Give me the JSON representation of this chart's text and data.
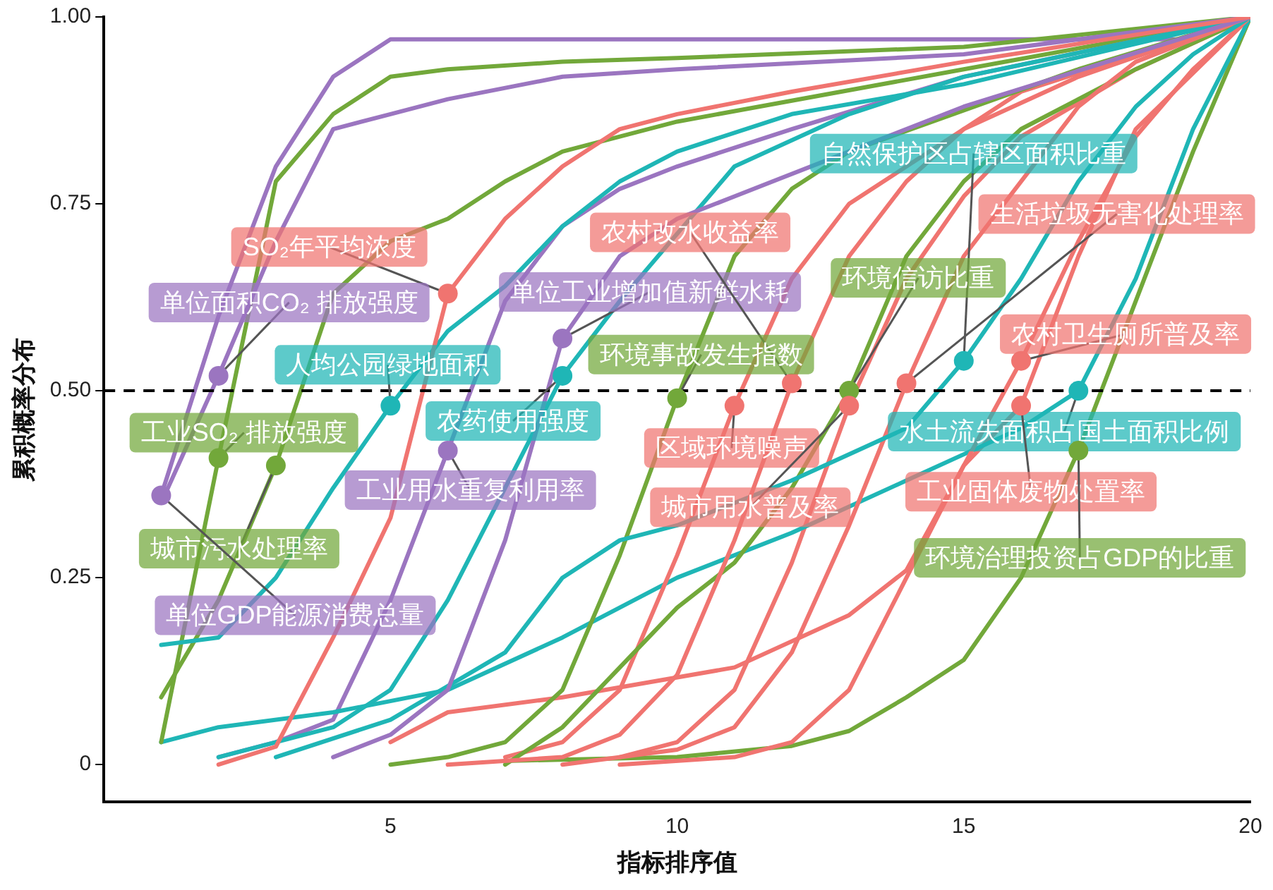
{
  "chart_data": {
    "type": "line",
    "xlabel": "指标排序值",
    "ylabel": "累积概率分布",
    "xlim": [
      0,
      20
    ],
    "xticks": [
      5,
      10,
      15,
      20
    ],
    "ylim": [
      -0.05,
      1.0
    ],
    "yticks": [
      0,
      0.25,
      {
        "value": 0.5,
        "label": "0.50"
      },
      0.75,
      {
        "value": 1,
        "label": "1.00"
      }
    ],
    "grid": false,
    "legend": false,
    "marker": "none",
    "line_style": "solid",
    "ref_lines": [
      {
        "axis": "y",
        "value": 0.5,
        "color": "#000000",
        "line_style": "dashed"
      }
    ],
    "series": [
      {
        "color": "#f07470",
        "x": [
          2,
          3,
          4,
          5,
          6,
          7,
          8,
          9,
          10,
          12,
          15,
          20
        ],
        "values": [
          0.0,
          0.024,
          0.17,
          0.33,
          0.63,
          0.73,
          0.8,
          0.85,
          0.87,
          0.9,
          0.94,
          1
        ]
      },
      {
        "color": "#9b75c0",
        "x": [
          1,
          2,
          3,
          4,
          5,
          6,
          8,
          10,
          15,
          20
        ],
        "values": [
          0.35,
          0.52,
          0.7,
          0.85,
          0.87,
          0.89,
          0.92,
          0.93,
          0.95,
          1
        ]
      },
      {
        "color": "#9b75c0",
        "x": [
          4,
          5,
          6,
          7,
          8,
          9,
          10,
          11,
          13,
          15,
          20
        ],
        "values": [
          0.01,
          0.04,
          0.1,
          0.3,
          0.57,
          0.68,
          0.73,
          0.76,
          0.82,
          0.88,
          1
        ]
      },
      {
        "color": "#f07470",
        "x": [
          6,
          8,
          9,
          10,
          11,
          12,
          13,
          14,
          15,
          17,
          20
        ],
        "values": [
          0.0,
          0.01,
          0.04,
          0.12,
          0.3,
          0.51,
          0.68,
          0.78,
          0.85,
          0.92,
          1
        ]
      },
      {
        "color": "#1fb6b6",
        "x": [
          3,
          5,
          7,
          8,
          9,
          10,
          12,
          14,
          15,
          16,
          17,
          18,
          19,
          20
        ],
        "values": [
          0.01,
          0.06,
          0.15,
          0.25,
          0.3,
          0.32,
          0.38,
          0.45,
          0.54,
          0.65,
          0.78,
          0.88,
          0.95,
          1
        ]
      },
      {
        "color": "#f07470",
        "x": [
          8,
          10,
          11,
          12,
          13,
          14,
          15,
          17,
          18,
          20
        ],
        "values": [
          0.0,
          0.02,
          0.05,
          0.15,
          0.32,
          0.51,
          0.68,
          0.88,
          0.94,
          1
        ]
      },
      {
        "color": "#72a83a",
        "x": [
          7,
          8,
          9,
          10,
          11,
          12,
          13,
          14,
          15,
          16,
          18,
          20
        ],
        "values": [
          0.0,
          0.05,
          0.13,
          0.21,
          0.27,
          0.37,
          0.5,
          0.68,
          0.78,
          0.85,
          0.93,
          1
        ]
      },
      {
        "color": "#1fb6b6",
        "x": [
          1,
          2,
          3,
          4,
          5,
          6,
          7,
          8,
          9,
          10,
          12,
          15,
          20
        ],
        "values": [
          0.16,
          0.17,
          0.25,
          0.37,
          0.48,
          0.58,
          0.64,
          0.72,
          0.78,
          0.82,
          0.87,
          0.91,
          1
        ]
      },
      {
        "color": "#72a83a",
        "x": [
          5,
          6,
          7,
          8,
          9,
          10,
          11,
          12,
          13,
          17,
          20
        ],
        "values": [
          0.0,
          0.01,
          0.03,
          0.1,
          0.28,
          0.49,
          0.68,
          0.77,
          0.82,
          0.93,
          1
        ]
      },
      {
        "color": "#f07470",
        "x": [
          9,
          11,
          12,
          13,
          14,
          15,
          16,
          17,
          18,
          19,
          20
        ],
        "values": [
          0.0,
          0.01,
          0.03,
          0.1,
          0.25,
          0.4,
          0.54,
          0.7,
          0.84,
          0.93,
          1
        ]
      },
      {
        "color": "#72a83a",
        "x": [
          1,
          2,
          3,
          4,
          5,
          6,
          8,
          10,
          15,
          20
        ],
        "values": [
          0.03,
          0.41,
          0.78,
          0.87,
          0.92,
          0.93,
          0.94,
          0.945,
          0.96,
          1
        ]
      },
      {
        "color": "#1fb6b6",
        "x": [
          2,
          3,
          4,
          5,
          6,
          7,
          8,
          9,
          11,
          13,
          15,
          20
        ],
        "values": [
          0.01,
          0.03,
          0.05,
          0.1,
          0.22,
          0.37,
          0.52,
          0.62,
          0.8,
          0.87,
          0.92,
          1
        ]
      },
      {
        "color": "#f07470",
        "x": [
          7,
          8,
          9,
          10,
          11,
          12,
          13,
          16,
          18,
          20
        ],
        "values": [
          0.01,
          0.03,
          0.1,
          0.28,
          0.48,
          0.65,
          0.75,
          0.9,
          0.95,
          1
        ]
      },
      {
        "color": "#1fb6b6",
        "x": [
          1,
          2,
          4,
          6,
          8,
          10,
          12,
          14,
          16,
          17,
          18,
          19,
          20
        ],
        "values": [
          0.03,
          0.05,
          0.07,
          0.1,
          0.17,
          0.25,
          0.31,
          0.38,
          0.45,
          0.5,
          0.65,
          0.85,
          1
        ]
      },
      {
        "color": "#9b75c0",
        "x": [
          2,
          3,
          4,
          5,
          6,
          7,
          8,
          9,
          10,
          12,
          15,
          20
        ],
        "values": [
          0.01,
          0.03,
          0.06,
          0.22,
          0.42,
          0.62,
          0.72,
          0.77,
          0.8,
          0.85,
          0.92,
          1
        ]
      },
      {
        "color": "#f07470",
        "x": [
          9,
          10,
          11,
          12,
          13,
          14,
          15,
          16,
          18,
          20
        ],
        "values": [
          0.01,
          0.03,
          0.1,
          0.27,
          0.48,
          0.65,
          0.76,
          0.84,
          0.93,
          1
        ]
      },
      {
        "color": "#f07470",
        "x": [
          5,
          6,
          8,
          11,
          13,
          14,
          15,
          16,
          17,
          18,
          20
        ],
        "values": [
          0.03,
          0.07,
          0.09,
          0.13,
          0.2,
          0.26,
          0.4,
          0.48,
          0.68,
          0.85,
          1
        ]
      },
      {
        "color": "#72a83a",
        "x": [
          1,
          2,
          3,
          4,
          5,
          6,
          7,
          8,
          10,
          15,
          20
        ],
        "values": [
          0.09,
          0.22,
          0.4,
          0.63,
          0.7,
          0.73,
          0.78,
          0.82,
          0.86,
          0.93,
          1
        ]
      },
      {
        "color": "#72a83a",
        "x": [
          7,
          10,
          12,
          13,
          14,
          15,
          16,
          17,
          18,
          19,
          20
        ],
        "values": [
          0.005,
          0.01,
          0.025,
          0.045,
          0.09,
          0.14,
          0.25,
          0.42,
          0.62,
          0.82,
          1
        ]
      },
      {
        "color": "#9b75c0",
        "x": [
          1,
          2,
          3,
          4,
          5,
          6,
          10,
          15,
          19,
          20
        ],
        "values": [
          0.36,
          0.6,
          0.8,
          0.92,
          0.97,
          0.97,
          0.97,
          0.97,
          0.97,
          1
        ]
      }
    ],
    "annotations": [
      {
        "text": "SO₂年平均浓度",
        "x": 6,
        "y": 0.63
      },
      {
        "text": "单位面积CO₂ 排放强度",
        "x": 2,
        "y": 0.52
      },
      {
        "text": "单位工业增加值新鲜水耗",
        "x": 8,
        "y": 0.57
      },
      {
        "text": "农村改水收益率",
        "x": 12,
        "y": 0.51
      },
      {
        "text": "自然保护区占辖区面积比重",
        "x": 15,
        "y": 0.54
      },
      {
        "text": "生活垃圾无害化处理率",
        "x": 14,
        "y": 0.51
      },
      {
        "text": "环境信访比重",
        "x": 13,
        "y": 0.5
      },
      {
        "text": "人均公园绿地面积",
        "x": 5,
        "y": 0.48
      },
      {
        "text": "环境事故发生指数",
        "x": 10,
        "y": 0.49
      },
      {
        "text": "农村卫生厕所普及率",
        "x": 16,
        "y": 0.54
      },
      {
        "text": "工业SO₂ 排放强度",
        "x": 2,
        "y": 0.41
      },
      {
        "text": "农药使用强度",
        "x": 8,
        "y": 0.52
      },
      {
        "text": "区域环境噪声",
        "x": 11,
        "y": 0.48
      },
      {
        "text": "水土流失面积占国土面积比例",
        "x": 17,
        "y": 0.5
      },
      {
        "text": "工业用水重复利用率",
        "x": 6,
        "y": 0.42
      },
      {
        "text": "城市用水普及率",
        "x": 13,
        "y": 0.48
      },
      {
        "text": "工业固体废物处置率",
        "x": 16,
        "y": 0.48
      },
      {
        "text": "城市污水处理率",
        "x": 3,
        "y": 0.4
      },
      {
        "text": "环境治理投资占GDP的比重",
        "x": 17,
        "y": 0.42
      },
      {
        "text": "单位GDP能源消费总量",
        "x": 1,
        "y": 0.36
      }
    ]
  }
}
